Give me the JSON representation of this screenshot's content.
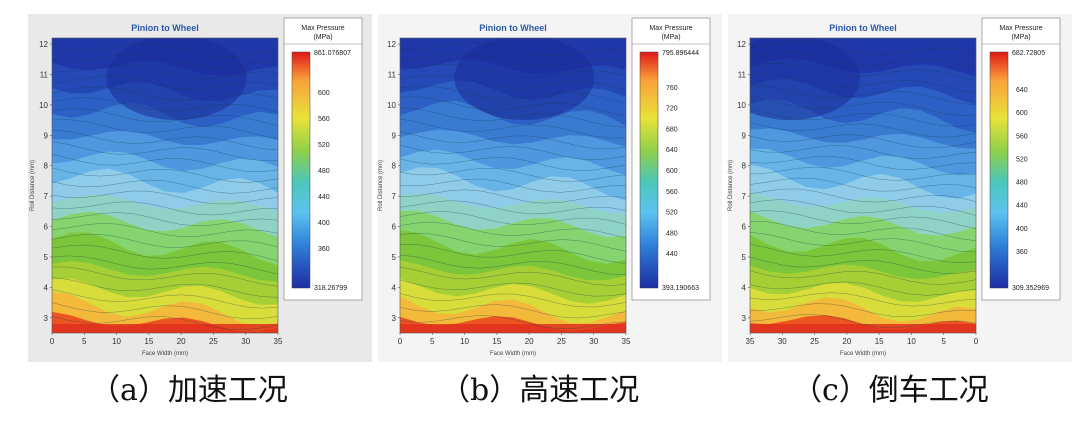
{
  "chart_data": [
    {
      "type": "heatmap",
      "panel_id": "a",
      "title": "Pinion to Wheel",
      "caption": "（a）加速工况",
      "xlabel": "Face Width (mm)",
      "ylabel": "Roll Distance (mm)",
      "x_ticks": [
        "0",
        "5",
        "10",
        "15",
        "20",
        "25",
        "30",
        "35"
      ],
      "y_ticks": [
        "3",
        "4",
        "5",
        "6",
        "7",
        "8",
        "9",
        "10",
        "11",
        "12"
      ],
      "colorbar": {
        "title": "Max Pressure (MPa)",
        "max_label": "861.076807",
        "min_label": "318.26799",
        "tick_labels": [
          "600",
          "560",
          "520",
          "480",
          "440",
          "400",
          "360"
        ]
      }
    },
    {
      "type": "heatmap",
      "panel_id": "b",
      "title": "Pinion to Wheel",
      "caption": "（b）高速工况",
      "xlabel": "Face Width (mm)",
      "ylabel": "Roll Distance (mm)",
      "x_ticks": [
        "0",
        "5",
        "10",
        "15",
        "20",
        "25",
        "30",
        "35"
      ],
      "y_ticks": [
        "3",
        "4",
        "5",
        "6",
        "7",
        "8",
        "9",
        "10",
        "11",
        "12"
      ],
      "colorbar": {
        "title": "Max Pressure (MPa)",
        "max_label": "795.896444",
        "min_label": "393.190663",
        "tick_labels": [
          "760",
          "720",
          "680",
          "640",
          "600",
          "560",
          "520",
          "480",
          "440"
        ]
      }
    },
    {
      "type": "heatmap",
      "panel_id": "c",
      "title": "Pinion to Wheel",
      "caption": "（c）倒车工况",
      "xlabel": "Face Width (mm)",
      "ylabel": "Roll Distance (mm)",
      "x_ticks": [
        "35",
        "30",
        "25",
        "20",
        "15",
        "10",
        "5",
        "0"
      ],
      "y_ticks": [
        "3",
        "4",
        "5",
        "6",
        "7",
        "8",
        "9",
        "10",
        "11",
        "12"
      ],
      "colorbar": {
        "title": "Max Pressure (MPa)",
        "max_label": "682.72805",
        "min_label": "309.352969",
        "tick_labels": [
          "640",
          "600",
          "560",
          "520",
          "480",
          "440",
          "400",
          "360"
        ]
      }
    }
  ]
}
